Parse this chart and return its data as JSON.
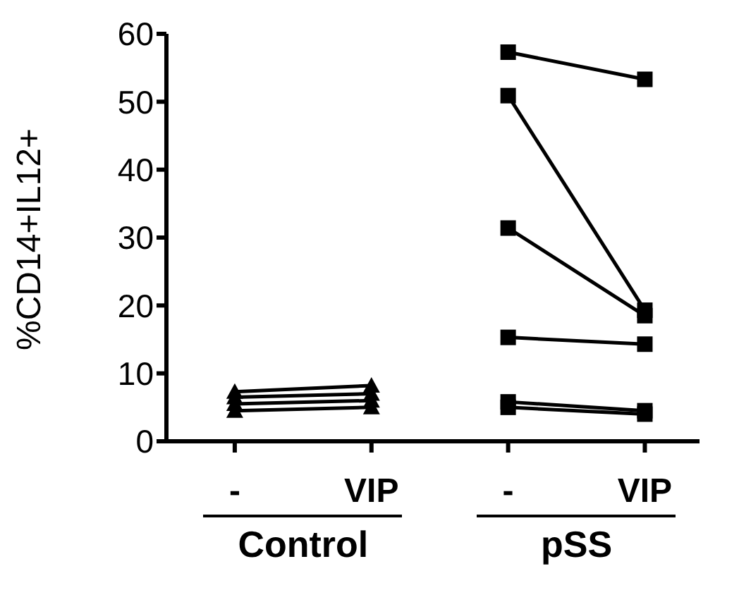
{
  "chart_data": {
    "type": "line",
    "ylabel": "%CD14+IL12+",
    "categories": [
      "-",
      "VIP",
      "-",
      "VIP"
    ],
    "ylim": [
      0,
      60
    ],
    "yticks": [
      0,
      10,
      20,
      30,
      40,
      50,
      60
    ],
    "grid": false,
    "tick_labels": "xy",
    "line_style": "solid",
    "annotations": [
      "Control",
      "pSS"
    ],
    "series": [
      {
        "color": "#000000",
        "marker": "triangle",
        "values": [
          7.3,
          8.2,
          null,
          null
        ]
      },
      {
        "color": "#000000",
        "marker": "triangle",
        "values": [
          6.5,
          7.0,
          null,
          null
        ]
      },
      {
        "color": "#000000",
        "marker": "triangle",
        "values": [
          5.5,
          6.0,
          null,
          null
        ]
      },
      {
        "color": "#000000",
        "marker": "triangle",
        "values": [
          4.5,
          5.0,
          null,
          null
        ]
      },
      {
        "color": "#000000",
        "marker": "square",
        "values": [
          null,
          null,
          57.3,
          53.3
        ]
      },
      {
        "color": "#000000",
        "marker": "square",
        "values": [
          null,
          null,
          50.9,
          19.3
        ]
      },
      {
        "color": "#000000",
        "marker": "square",
        "values": [
          null,
          null,
          31.4,
          18.5
        ]
      },
      {
        "color": "#000000",
        "marker": "square",
        "values": [
          null,
          null,
          15.3,
          14.3
        ]
      },
      {
        "color": "#000000",
        "marker": "square",
        "values": [
          null,
          null,
          5.8,
          4.5
        ]
      },
      {
        "color": "#000000",
        "marker": "square",
        "values": [
          null,
          null,
          5.0,
          4.0
        ]
      }
    ]
  }
}
